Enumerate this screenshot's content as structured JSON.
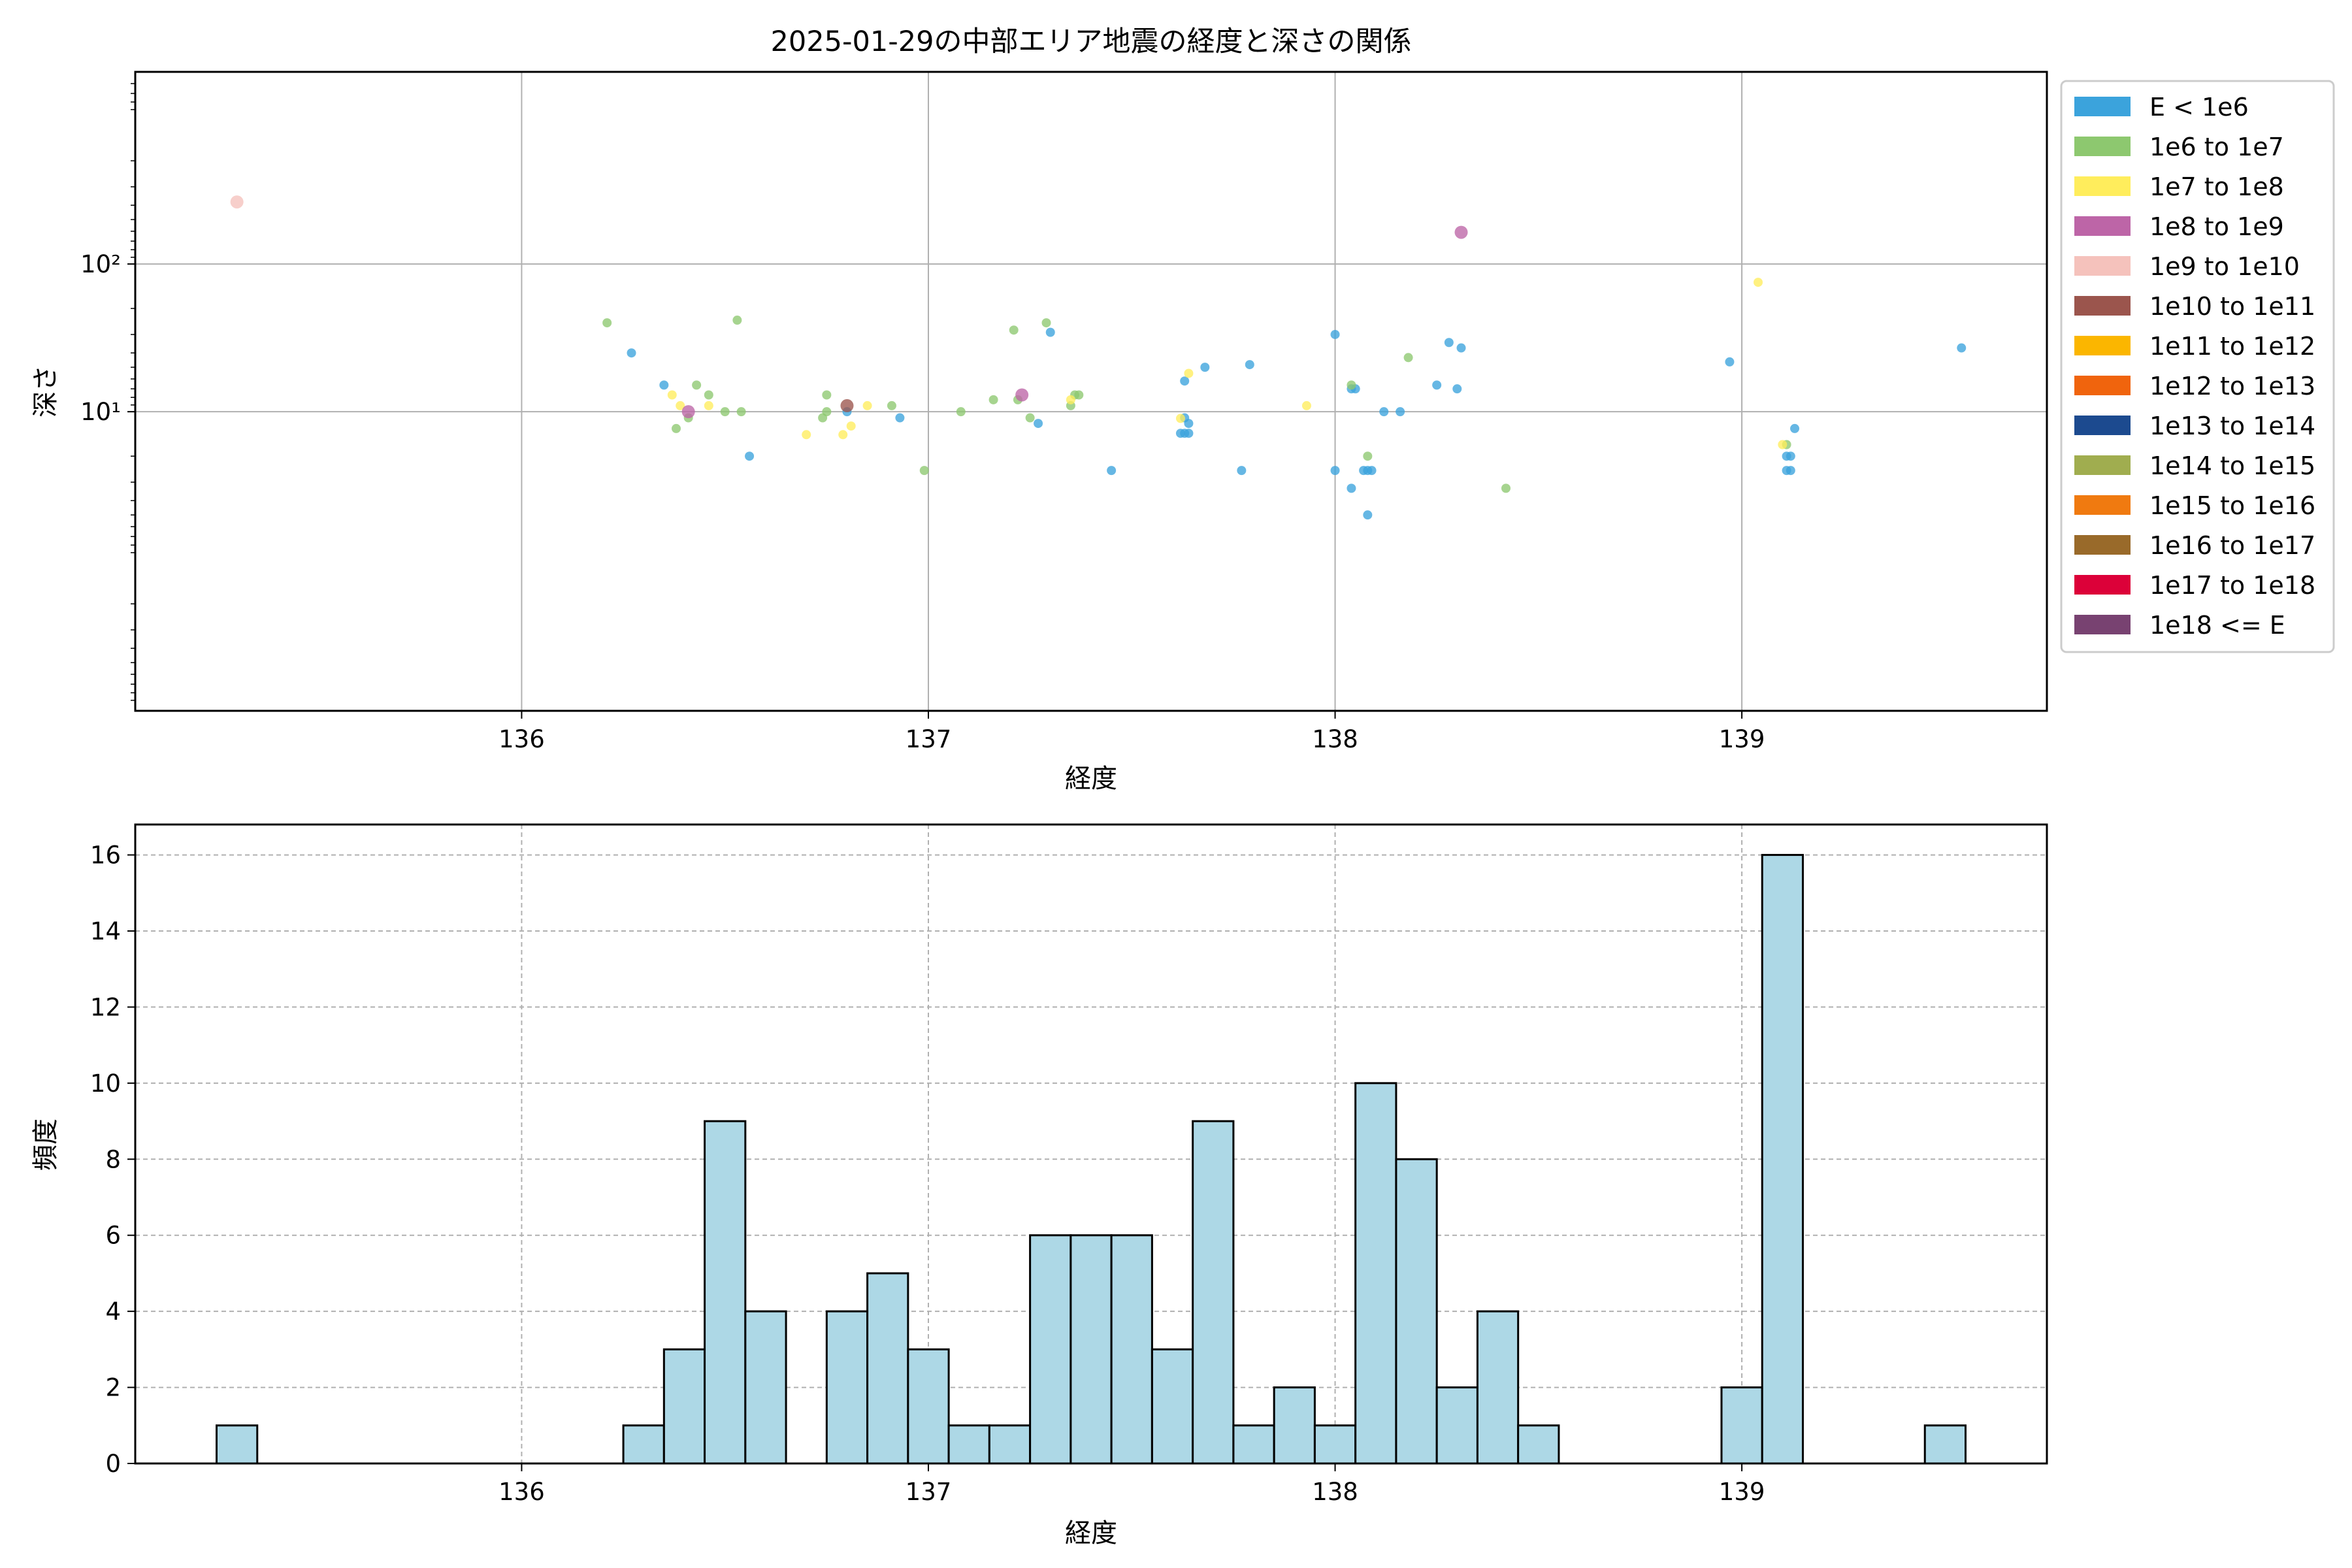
{
  "chart_data": [
    {
      "type": "scatter",
      "title": "2025-01-29の中部エリア地震の経度と深さの関係",
      "xlabel": "経度",
      "ylabel": "深さ",
      "xlim": [
        135.05,
        139.75
      ],
      "ylim": [
        10.6,
        0.0005
      ],
      "yscale": "log",
      "y_inverted": true,
      "grid": true,
      "legend_placement": "outside-right",
      "x_ticks": [
        136,
        137,
        138,
        139
      ],
      "x_tick_labels": [
        "136",
        "137",
        "138",
        "139"
      ],
      "y_ticks": [
        0.1,
        0.01
      ],
      "y_tick_labels": [
        "10¹",
        "10²"
      ],
      "legend": [
        {
          "label": "E < 1e6",
          "color": "#3ba3dc"
        },
        {
          "label": "1e6 to 1e7",
          "color": "#8dc86f"
        },
        {
          "label": "1e7 to 1e8",
          "color": "#ffed5c"
        },
        {
          "label": "1e8 to 1e9",
          "color": "#bd65a7"
        },
        {
          "label": "1e9 to 1e10",
          "color": "#f5c2bc"
        },
        {
          "label": "1e10 to 1e11",
          "color": "#9b554d"
        },
        {
          "label": "1e11 to 1e12",
          "color": "#fbb600"
        },
        {
          "label": "1e12 to 1e13",
          "color": "#f0640d"
        },
        {
          "label": "1e13 to 1e14",
          "color": "#1c4a8f"
        },
        {
          "label": "1e14 to 1e15",
          "color": "#a0ad4f"
        },
        {
          "label": "1e15 to 1e16",
          "color": "#f07a10"
        },
        {
          "label": "1e16 to 1e17",
          "color": "#996a2a"
        },
        {
          "label": "1e17 to 1e18",
          "color": "#dc0139"
        },
        {
          "label": "1e18 <= E",
          "color": "#784271"
        }
      ],
      "series": [
        {
          "legend_index": 0,
          "points": [
            [
              136.27,
              0.04
            ],
            [
              136.35,
              0.066
            ],
            [
              136.56,
              0.2
            ],
            [
              136.8,
              0.1
            ],
            [
              136.93,
              0.11
            ],
            [
              137.27,
              0.12
            ],
            [
              137.3,
              0.029
            ],
            [
              137.45,
              0.25
            ],
            [
              137.62,
              0.14
            ],
            [
              137.63,
              0.14
            ],
            [
              137.64,
              0.14
            ],
            [
              137.64,
              0.12
            ],
            [
              137.63,
              0.11
            ],
            [
              137.63,
              0.062
            ],
            [
              137.68,
              0.05
            ],
            [
              137.77,
              0.25
            ],
            [
              137.79,
              0.048
            ],
            [
              138.0,
              0.25
            ],
            [
              138.0,
              0.03
            ],
            [
              138.04,
              0.33
            ],
            [
              138.04,
              0.07
            ],
            [
              138.05,
              0.07
            ],
            [
              138.07,
              0.25
            ],
            [
              138.08,
              0.25
            ],
            [
              138.08,
              0.5
            ],
            [
              138.09,
              0.25
            ],
            [
              138.12,
              0.1
            ],
            [
              138.16,
              0.1
            ],
            [
              138.25,
              0.066
            ],
            [
              138.28,
              0.034
            ],
            [
              138.3,
              0.07
            ],
            [
              138.31,
              0.037
            ],
            [
              138.97,
              0.046
            ],
            [
              139.11,
              0.25
            ],
            [
              139.11,
              0.2
            ],
            [
              139.12,
              0.25
            ],
            [
              139.12,
              0.2
            ],
            [
              139.13,
              0.13
            ],
            [
              139.54,
              0.037
            ]
          ]
        },
        {
          "legend_index": 1,
          "points": [
            [
              136.21,
              0.025
            ],
            [
              136.38,
              0.13
            ],
            [
              136.41,
              0.11
            ],
            [
              136.43,
              0.066
            ],
            [
              136.46,
              0.077
            ],
            [
              136.5,
              0.1
            ],
            [
              136.54,
              0.1
            ],
            [
              136.53,
              0.024
            ],
            [
              136.74,
              0.11
            ],
            [
              136.75,
              0.1
            ],
            [
              136.75,
              0.077
            ],
            [
              136.91,
              0.091
            ],
            [
              136.99,
              0.25
            ],
            [
              137.08,
              0.1
            ],
            [
              137.16,
              0.083
            ],
            [
              137.21,
              0.028
            ],
            [
              137.22,
              0.083
            ],
            [
              137.25,
              0.11
            ],
            [
              137.29,
              0.025
            ],
            [
              137.35,
              0.091
            ],
            [
              137.36,
              0.077
            ],
            [
              137.37,
              0.077
            ],
            [
              138.04,
              0.066
            ],
            [
              138.08,
              0.2
            ],
            [
              138.18,
              0.043
            ],
            [
              138.42,
              0.33
            ],
            [
              139.11,
              0.167
            ]
          ]
        },
        {
          "legend_index": 2,
          "points": [
            [
              136.37,
              0.077
            ],
            [
              136.39,
              0.091
            ],
            [
              136.46,
              0.091
            ],
            [
              136.7,
              0.143
            ],
            [
              136.79,
              0.143
            ],
            [
              136.81,
              0.125
            ],
            [
              136.85,
              0.091
            ],
            [
              137.35,
              0.083
            ],
            [
              137.62,
              0.111
            ],
            [
              137.64,
              0.055
            ],
            [
              137.93,
              0.091
            ],
            [
              139.04,
              0.0133
            ],
            [
              139.1,
              0.167
            ]
          ]
        },
        {
          "legend_index": 3,
          "points": [
            [
              136.41,
              0.1
            ],
            [
              137.23,
              0.077
            ],
            [
              138.31,
              0.0061
            ]
          ]
        },
        {
          "legend_index": 4,
          "points": [
            [
              135.3,
              0.0038
            ]
          ]
        },
        {
          "legend_index": 5,
          "points": [
            [
              136.8,
              0.091
            ]
          ]
        }
      ]
    },
    {
      "type": "bar",
      "subtype": "histogram",
      "xlabel": "経度",
      "ylabel": "頻度",
      "xlim": [
        135.05,
        139.75
      ],
      "ylim": [
        0,
        16.8
      ],
      "grid": true,
      "bar_color": "#add8e6",
      "x_ticks": [
        136,
        137,
        138,
        139
      ],
      "x_tick_labels": [
        "136",
        "137",
        "138",
        "139"
      ],
      "y_ticks": [
        0,
        2,
        4,
        6,
        8,
        10,
        12,
        14,
        16
      ],
      "y_tick_labels": [
        "0",
        "2",
        "4",
        "6",
        "8",
        "10",
        "12",
        "14",
        "16"
      ],
      "bin_start": 135.25,
      "bin_width": 0.1,
      "counts": [
        1,
        0,
        0,
        0,
        0,
        0,
        0,
        0,
        0,
        0,
        1,
        3,
        9,
        4,
        0,
        4,
        5,
        3,
        1,
        1,
        6,
        6,
        6,
        3,
        9,
        1,
        2,
        1,
        10,
        8,
        2,
        4,
        1,
        0,
        0,
        0,
        0,
        2,
        16,
        0,
        0,
        0,
        1
      ]
    }
  ]
}
